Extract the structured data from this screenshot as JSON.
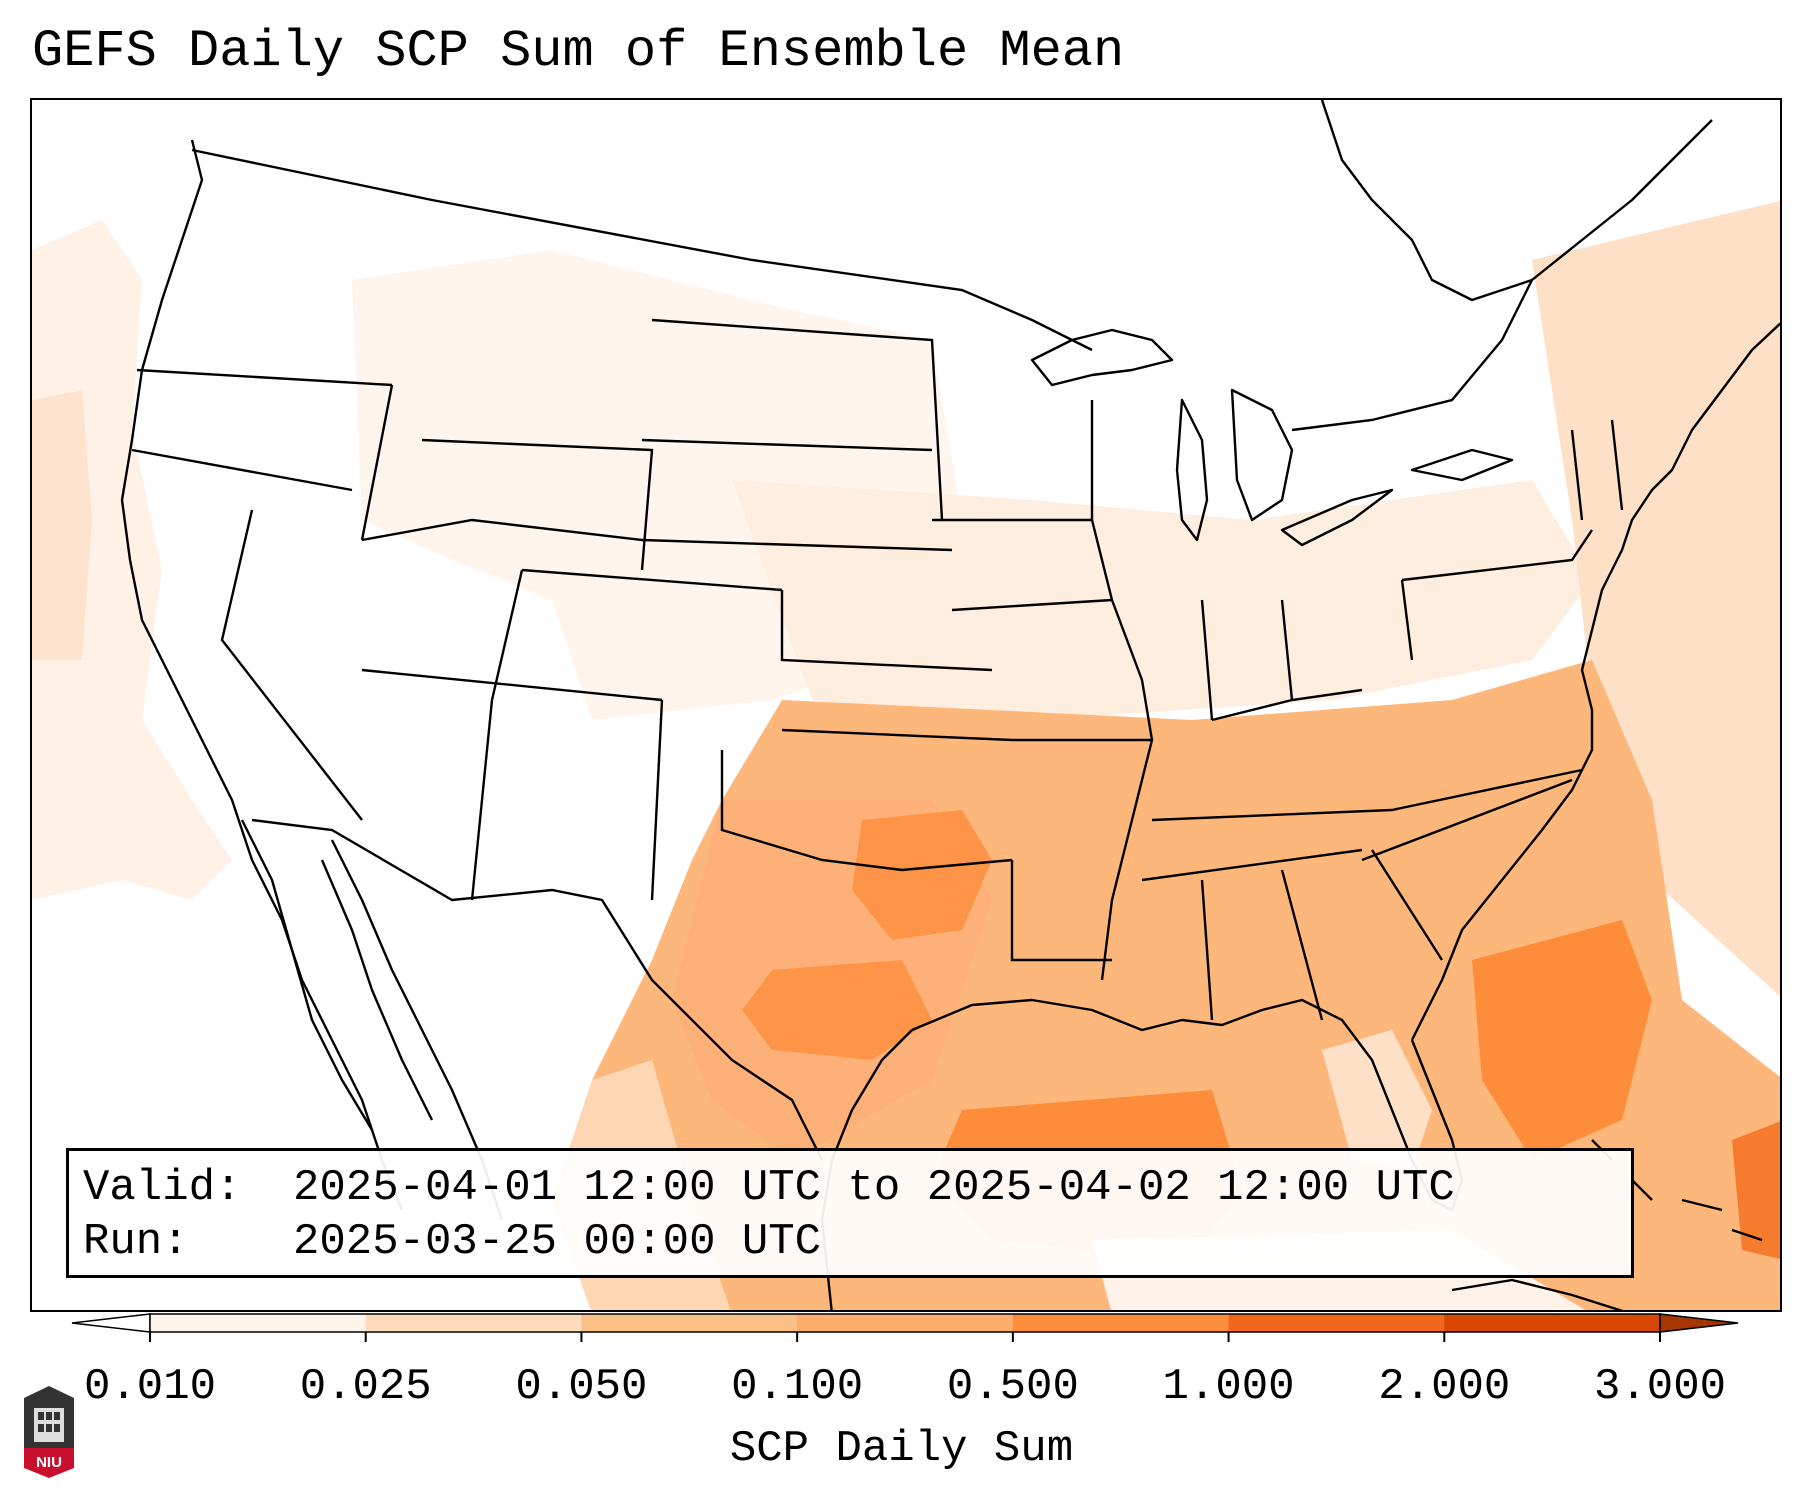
{
  "title": "GEFS Daily SCP Sum of Ensemble Mean",
  "info": {
    "valid_key": "Valid:",
    "valid_value": "2025-04-01 12:00 UTC to 2025-04-02 12:00 UTC",
    "run_key": "Run:",
    "run_value": "2025-03-25 00:00 UTC"
  },
  "colorbar": {
    "label": "SCP Daily Sum",
    "ticks": [
      "0.010",
      "0.025",
      "0.050",
      "0.100",
      "0.500",
      "1.000",
      "2.000",
      "3.000"
    ],
    "colors": [
      "#fff4ea",
      "#fedcbb",
      "#fdbf88",
      "#fdae6b",
      "#fd8c3b",
      "#f0661a",
      "#d94801"
    ],
    "under_color": "#ffffff",
    "over_color": "#a63603"
  },
  "logo": {
    "text": "NIU",
    "icon": "niu-tower-icon"
  }
}
